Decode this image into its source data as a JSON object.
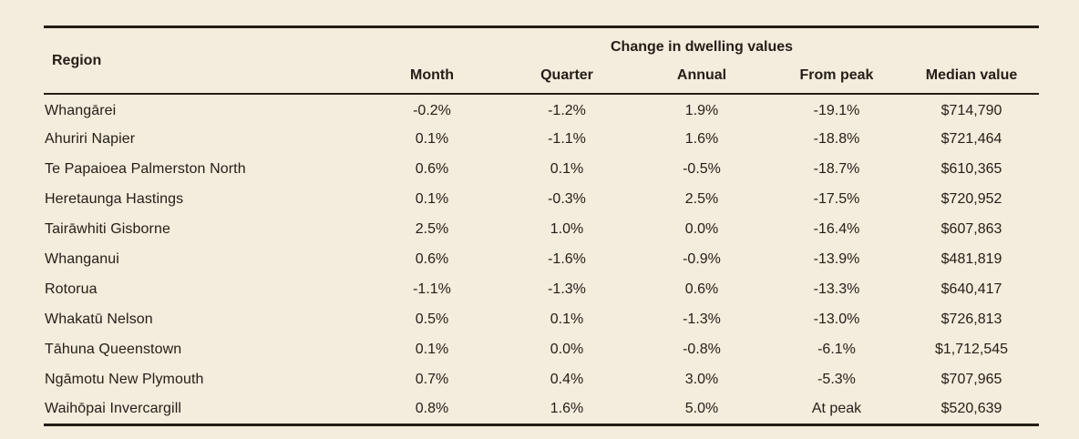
{
  "colors": {
    "background": "#f4ecdc",
    "ink": "#231e17"
  },
  "chart_data": {
    "type": "table",
    "title": "Change in dwelling values",
    "region_header": "Region",
    "value_columns": [
      "Month",
      "Quarter",
      "Annual",
      "From peak",
      "Median value"
    ],
    "rows": [
      {
        "region": "Whangārei",
        "values": [
          "-0.2%",
          "-1.2%",
          "1.9%",
          "-19.1%",
          "$714,790"
        ]
      },
      {
        "region": "Ahuriri Napier",
        "values": [
          "0.1%",
          "-1.1%",
          "1.6%",
          "-18.8%",
          "$721,464"
        ]
      },
      {
        "region": "Te Papaioea Palmerston North",
        "values": [
          "0.6%",
          "0.1%",
          "-0.5%",
          "-18.7%",
          "$610,365"
        ]
      },
      {
        "region": "Heretaunga Hastings",
        "values": [
          "0.1%",
          "-0.3%",
          "2.5%",
          "-17.5%",
          "$720,952"
        ]
      },
      {
        "region": "Tairāwhiti Gisborne",
        "values": [
          "2.5%",
          "1.0%",
          "0.0%",
          "-16.4%",
          "$607,863"
        ]
      },
      {
        "region": "Whanganui",
        "values": [
          "0.6%",
          "-1.6%",
          "-0.9%",
          "-13.9%",
          "$481,819"
        ]
      },
      {
        "region": "Rotorua",
        "values": [
          "-1.1%",
          "-1.3%",
          "0.6%",
          "-13.3%",
          "$640,417"
        ]
      },
      {
        "region": "Whakatū Nelson",
        "values": [
          "0.5%",
          "0.1%",
          "-1.3%",
          "-13.0%",
          "$726,813"
        ]
      },
      {
        "region": "Tāhuna Queenstown",
        "values": [
          "0.1%",
          "0.0%",
          "-0.8%",
          "-6.1%",
          "$1,712,545"
        ]
      },
      {
        "region": "Ngāmotu New Plymouth",
        "values": [
          "0.7%",
          "0.4%",
          "3.0%",
          "-5.3%",
          "$707,965"
        ]
      },
      {
        "region": "Waihōpai Invercargill",
        "values": [
          "0.8%",
          "1.6%",
          "5.0%",
          "At peak",
          "$520,639"
        ]
      }
    ]
  }
}
